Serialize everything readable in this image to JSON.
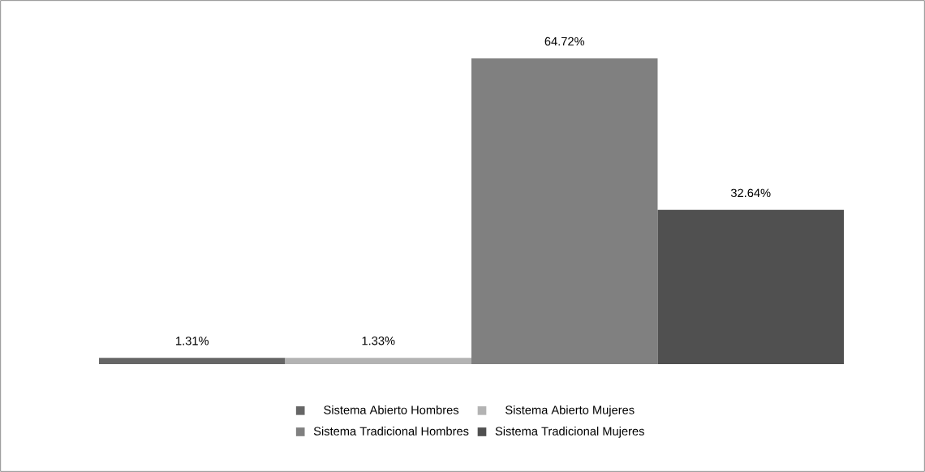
{
  "chart_data": {
    "type": "bar",
    "categories": [
      null
    ],
    "series": [
      {
        "name": "Sistema Abierto Hombres",
        "color": "#666666",
        "values": [
          1.31
        ],
        "value_labels": [
          "1.31%"
        ]
      },
      {
        "name": "Sistema Abierto Mujeres",
        "color": "#b3b3b3",
        "values": [
          1.33
        ],
        "value_labels": [
          "1.33%"
        ]
      },
      {
        "name": "Sistema Tradicional Hombres",
        "color": "#808080",
        "values": [
          64.72
        ],
        "value_labels": [
          "64.72%"
        ]
      },
      {
        "name": "Sistema Tradicional Mujeres",
        "color": "#505050",
        "values": [
          32.64
        ],
        "value_labels": [
          "32.64%"
        ]
      }
    ],
    "legend": "bottom"
  }
}
